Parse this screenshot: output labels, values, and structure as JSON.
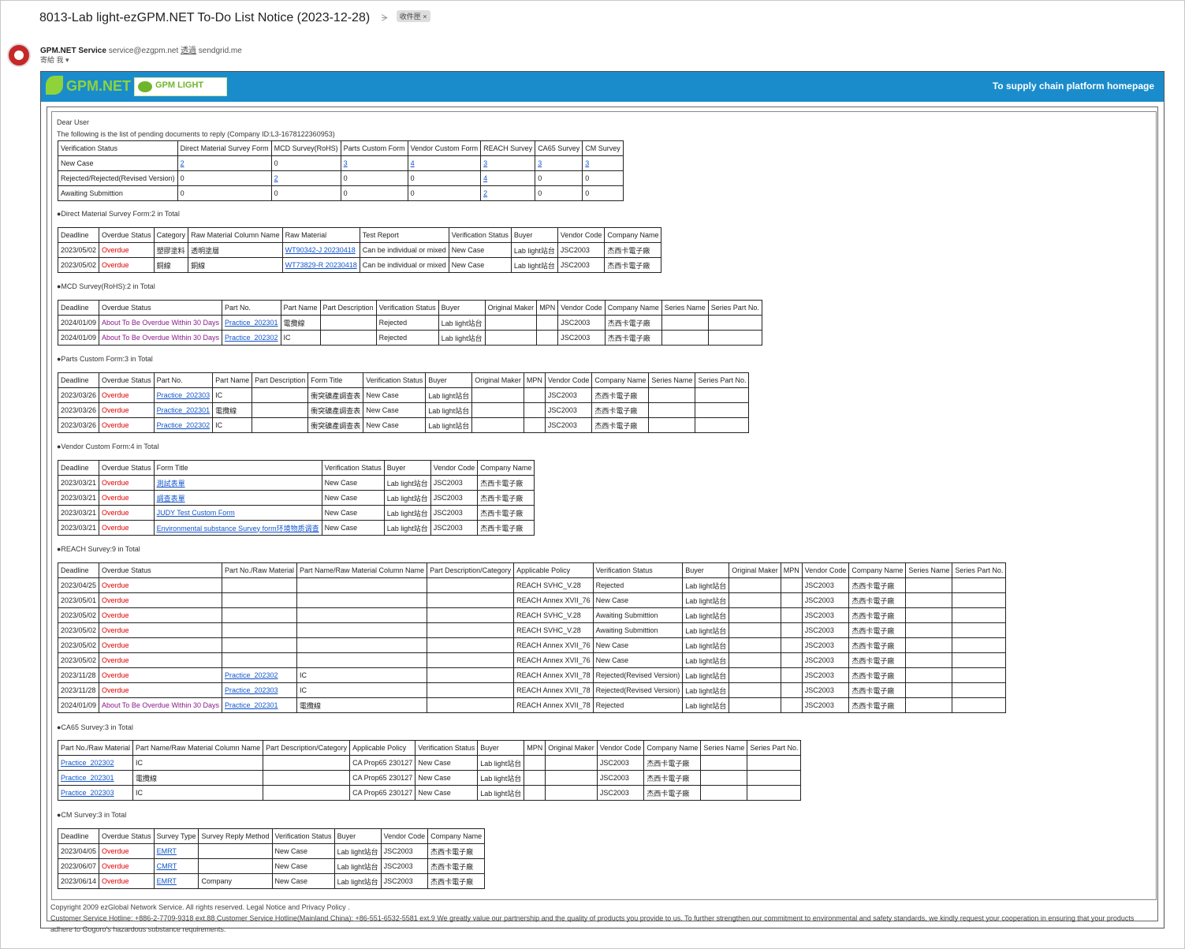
{
  "email": {
    "subject": "8013-Lab light-ezGPM.NET To-Do List Notice (2023-12-28)",
    "label": "收件匣 ×",
    "sender_name": "GPM.NET Service",
    "sender_email": "service@ezgpm.net",
    "via": "透過",
    "via_domain": "sendgrid.me",
    "recipient": "寄給 我"
  },
  "banner": {
    "logo_text": "GPM.NET",
    "logo2_text": "GPM LIGHT",
    "link": "To supply chain platform homepage",
    "color": "#1a8ccc"
  },
  "greeting": "Dear User",
  "intro": "The following is the list of pending documents to reply (Company ID:L3-1678122360953)",
  "summary": {
    "headers": [
      "Verification Status",
      "Direct Material Survey Form",
      "MCD Survey(RoHS)",
      "Parts Custom Form",
      "Vendor Custom Form",
      "REACH Survey",
      "CA65 Survey",
      "CM Survey"
    ],
    "rows": [
      [
        "New Case",
        "2",
        "0",
        "3",
        "4",
        "3",
        "3",
        "3"
      ],
      [
        "Rejected/Rejected(Revised Version)",
        "0",
        "2",
        "0",
        "0",
        "4",
        "0",
        "0"
      ],
      [
        "Awaiting Submittion",
        "0",
        "0",
        "0",
        "0",
        "2",
        "0",
        "0"
      ]
    ]
  },
  "direct": {
    "title": "●Direct Material Survey Form:2 in Total",
    "headers": [
      "Deadline",
      "Overdue Status",
      "Category",
      "Raw Material Column Name",
      "Raw Material",
      "Test Report",
      "Verification Status",
      "Buyer",
      "Vendor Code",
      "Company Name"
    ],
    "rows": [
      [
        "2023/05/02",
        "Overdue",
        "塑膠塗料",
        "透明塗層",
        "WT90342-J 20230418",
        "Can be individual or mixed",
        "New Case",
        "Lab light站台",
        "JSC2003",
        "杰西卡電子廠"
      ],
      [
        "2023/05/02",
        "Overdue",
        "銅線",
        "銅線",
        "WT73829-R 20230418",
        "Can be individual or mixed",
        "New Case",
        "Lab light站台",
        "JSC2003",
        "杰西卡電子廠"
      ]
    ]
  },
  "mcd": {
    "title": "●MCD Survey(RoHS):2 in Total",
    "headers": [
      "Deadline",
      "Overdue Status",
      "Part No.",
      "Part Name",
      "Part Description",
      "Verification Status",
      "Buyer",
      "Original Maker",
      "MPN",
      "Vendor Code",
      "Company Name",
      "Series Name",
      "Series Part No."
    ],
    "rows": [
      [
        "2024/01/09",
        "About To Be Overdue Within 30 Days",
        "Practice_202301",
        "電攬線",
        "",
        "Rejected",
        "Lab light站台",
        "",
        "",
        "JSC2003",
        "杰西卡電子廠",
        "",
        ""
      ],
      [
        "2024/01/09",
        "About To Be Overdue Within 30 Days",
        "Practice_202302",
        "IC",
        "",
        "Rejected",
        "Lab light站台",
        "",
        "",
        "JSC2003",
        "杰西卡電子廠",
        "",
        ""
      ]
    ]
  },
  "parts": {
    "title": "●Parts Custom Form:3 in Total",
    "headers": [
      "Deadline",
      "Overdue Status",
      "Part No.",
      "Part Name",
      "Part Description",
      "Form Title",
      "Verification Status",
      "Buyer",
      "Original Maker",
      "MPN",
      "Vendor Code",
      "Company Name",
      "Series Name",
      "Series Part No."
    ],
    "rows": [
      [
        "2023/03/26",
        "Overdue",
        "Practice_202303",
        "IC",
        "",
        "衝突礦產調查表",
        "New Case",
        "Lab light站台",
        "",
        "",
        "JSC2003",
        "杰西卡電子廠",
        "",
        ""
      ],
      [
        "2023/03/26",
        "Overdue",
        "Practice_202301",
        "電攬線",
        "",
        "衝突礦產調查表",
        "New Case",
        "Lab light站台",
        "",
        "",
        "JSC2003",
        "杰西卡電子廠",
        "",
        ""
      ],
      [
        "2023/03/26",
        "Overdue",
        "Practice_202302",
        "IC",
        "",
        "衝突礦產調查表",
        "New Case",
        "Lab light站台",
        "",
        "",
        "JSC2003",
        "杰西卡電子廠",
        "",
        ""
      ]
    ]
  },
  "vendor": {
    "title": "●Vendor Custom Form:4 in Total",
    "headers": [
      "Deadline",
      "Overdue Status",
      "Form Title",
      "Verification Status",
      "Buyer",
      "Vendor Code",
      "Company Name"
    ],
    "rows": [
      [
        "2023/03/21",
        "Overdue",
        "測試表單",
        "New Case",
        "Lab light站台",
        "JSC2003",
        "杰西卡電子廠"
      ],
      [
        "2023/03/21",
        "Overdue",
        "調查表單",
        "New Case",
        "Lab light站台",
        "JSC2003",
        "杰西卡電子廠"
      ],
      [
        "2023/03/21",
        "Overdue",
        "JUDY Test Custom Form",
        "New Case",
        "Lab light站台",
        "JSC2003",
        "杰西卡電子廠"
      ],
      [
        "2023/03/21",
        "Overdue",
        "Environmental substance Survey form环境物质调查",
        "New Case",
        "Lab light站台",
        "JSC2003",
        "杰西卡電子廠"
      ]
    ]
  },
  "reach": {
    "title": "●REACH Survey:9 in Total",
    "headers": [
      "Deadline",
      "Overdue Status",
      "Part No./Raw Material",
      "Part Name/Raw Material Column Name",
      "Part Description/Category",
      "Applicable Policy",
      "Verification Status",
      "Buyer",
      "Original Maker",
      "MPN",
      "Vendor Code",
      "Company Name",
      "Series Name",
      "Series Part No."
    ],
    "rows": [
      [
        "2023/04/25",
        "Overdue",
        "",
        "",
        "",
        "REACH SVHC_V.28",
        "Rejected",
        "Lab light站台",
        "",
        "",
        "JSC2003",
        "杰西卡電子廠",
        "",
        ""
      ],
      [
        "2023/05/01",
        "Overdue",
        "",
        "",
        "",
        "REACH Annex XVII_76",
        "New Case",
        "Lab light站台",
        "",
        "",
        "JSC2003",
        "杰西卡電子廠",
        "",
        ""
      ],
      [
        "2023/05/02",
        "Overdue",
        "",
        "",
        "",
        "REACH SVHC_V.28",
        "Awaiting Submittion",
        "Lab light站台",
        "",
        "",
        "JSC2003",
        "杰西卡電子廠",
        "",
        ""
      ],
      [
        "2023/05/02",
        "Overdue",
        "",
        "",
        "",
        "REACH SVHC_V.28",
        "Awaiting Submittion",
        "Lab light站台",
        "",
        "",
        "JSC2003",
        "杰西卡電子廠",
        "",
        ""
      ],
      [
        "2023/05/02",
        "Overdue",
        "",
        "",
        "",
        "REACH Annex XVII_76",
        "New Case",
        "Lab light站台",
        "",
        "",
        "JSC2003",
        "杰西卡電子廠",
        "",
        ""
      ],
      [
        "2023/05/02",
        "Overdue",
        "",
        "",
        "",
        "REACH Annex XVII_76",
        "New Case",
        "Lab light站台",
        "",
        "",
        "JSC2003",
        "杰西卡電子廠",
        "",
        ""
      ],
      [
        "2023/11/28",
        "Overdue",
        "Practice_202302",
        "IC",
        "",
        "REACH Annex XVII_78",
        "Rejected(Revised Version)",
        "Lab light站台",
        "",
        "",
        "JSC2003",
        "杰西卡電子廠",
        "",
        ""
      ],
      [
        "2023/11/28",
        "Overdue",
        "Practice_202303",
        "IC",
        "",
        "REACH Annex XVII_78",
        "Rejected(Revised Version)",
        "Lab light站台",
        "",
        "",
        "JSC2003",
        "杰西卡電子廠",
        "",
        ""
      ],
      [
        "2024/01/09",
        "About To Be Overdue Within 30 Days",
        "Practice_202301",
        "電攬線",
        "",
        "REACH Annex XVII_78",
        "Rejected",
        "Lab light站台",
        "",
        "",
        "JSC2003",
        "杰西卡電子廠",
        "",
        ""
      ]
    ]
  },
  "ca65": {
    "title": "●CA65 Survey:3 in Total",
    "headers": [
      "Part No./Raw Material",
      "Part Name/Raw Material Column Name",
      "Part Description/Category",
      "Applicable Policy",
      "Verification Status",
      "Buyer",
      "MPN",
      "Original Maker",
      "Vendor Code",
      "Company Name",
      "Series Name",
      "Series Part No."
    ],
    "rows": [
      [
        "Practice_202302",
        "IC",
        "",
        "CA Prop65 230127",
        "New Case",
        "Lab light站台",
        "",
        "",
        "JSC2003",
        "杰西卡電子廠",
        "",
        ""
      ],
      [
        "Practice_202301",
        "電攬線",
        "",
        "CA Prop65 230127",
        "New Case",
        "Lab light站台",
        "",
        "",
        "JSC2003",
        "杰西卡電子廠",
        "",
        ""
      ],
      [
        "Practice_202303",
        "IC",
        "",
        "CA Prop65 230127",
        "New Case",
        "Lab light站台",
        "",
        "",
        "JSC2003",
        "杰西卡電子廠",
        "",
        ""
      ]
    ]
  },
  "cm": {
    "title": "●CM Survey:3 in Total",
    "headers": [
      "Deadline",
      "Overdue Status",
      "Survey Type",
      "Survey Reply Method",
      "Verification Status",
      "Buyer",
      "Vendor Code",
      "Company Name"
    ],
    "rows": [
      [
        "2023/04/05",
        "Overdue",
        "EMRT",
        "",
        "New Case",
        "Lab light站台",
        "JSC2003",
        "杰西卡電子廠"
      ],
      [
        "2023/06/07",
        "Overdue",
        "CMRT",
        "",
        "New Case",
        "Lab light站台",
        "JSC2003",
        "杰西卡電子廠"
      ],
      [
        "2023/06/14",
        "Overdue",
        "EMRT",
        "Company",
        "New Case",
        "Lab light站台",
        "JSC2003",
        "杰西卡電子廠"
      ]
    ]
  },
  "footer": {
    "line1": "Copyright 2009 ezGlobal Network Service. All rights reserved. Legal Notice and Privacy Policy .",
    "line2": "Customer Service Hotline: +886-2-7709-9318 ext.88   Customer Service Hotline(Mainland China): +86-551-6532-5581 ext.9   We greatly value our partnership and the quality of products you provide to us. To further strengthen our commitment to environmental and safety standards, we kindly request your cooperation in ensuring that your products adhere to Gogoro's hazardous substance requirements."
  }
}
